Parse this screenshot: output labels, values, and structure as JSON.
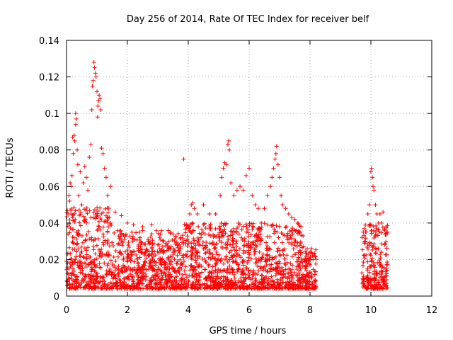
{
  "chart_data": {
    "type": "scatter",
    "title": "Day 256 of 2014, Rate Of TEC Index for receiver belf",
    "xlabel": "GPS time / hours",
    "ylabel": "ROTI / TECUs",
    "xlim": [
      0,
      12
    ],
    "ylim": [
      0,
      0.14
    ],
    "xticks": [
      0,
      2,
      4,
      6,
      8,
      10,
      12
    ],
    "yticks": [
      0,
      0.02,
      0.04,
      0.06,
      0.08,
      0.1,
      0.12,
      0.14
    ],
    "xtick_labels": [
      "0",
      "2",
      "4",
      "6",
      "8",
      "10",
      "12"
    ],
    "ytick_labels": [
      "0",
      "0.02",
      "0.04",
      "0.06",
      "0.08",
      "0.1",
      "0.12",
      "0.14"
    ],
    "grid": true,
    "marker": "+",
    "color": "#ff0000",
    "series": [
      {
        "name": "ROTI",
        "segments": [
          {
            "from": 0.0,
            "to": 8.2
          },
          {
            "from": 9.7,
            "to": 10.55
          }
        ],
        "points": [
          [
            0.05,
            0.045
          ],
          [
            0.08,
            0.055
          ],
          [
            0.1,
            0.052
          ],
          [
            0.12,
            0.062
          ],
          [
            0.15,
            0.06
          ],
          [
            0.18,
            0.066
          ],
          [
            0.2,
            0.087
          ],
          [
            0.22,
            0.078
          ],
          [
            0.25,
            0.088
          ],
          [
            0.27,
            0.085
          ],
          [
            0.3,
            0.1
          ],
          [
            0.3,
            0.094
          ],
          [
            0.32,
            0.097
          ],
          [
            0.35,
            0.08
          ],
          [
            0.37,
            0.072
          ],
          [
            0.4,
            0.055
          ],
          [
            0.45,
            0.068
          ],
          [
            0.5,
            0.05
          ],
          [
            0.55,
            0.062
          ],
          [
            0.6,
            0.071
          ],
          [
            0.65,
            0.065
          ],
          [
            0.7,
            0.058
          ],
          [
            0.75,
            0.076
          ],
          [
            0.8,
            0.083
          ],
          [
            0.83,
            0.102
          ],
          [
            0.85,
            0.115
          ],
          [
            0.87,
            0.118
          ],
          [
            0.9,
            0.128
          ],
          [
            0.92,
            0.125
          ],
          [
            0.95,
            0.122
          ],
          [
            0.97,
            0.12
          ],
          [
            1.0,
            0.112
          ],
          [
            1.02,
            0.098
          ],
          [
            1.03,
            0.104
          ],
          [
            1.05,
            0.107
          ],
          [
            1.07,
            0.11
          ],
          [
            1.1,
            0.108
          ],
          [
            1.12,
            0.102
          ],
          [
            1.15,
            0.081
          ],
          [
            1.2,
            0.078
          ],
          [
            1.25,
            0.07
          ],
          [
            1.3,
            0.065
          ],
          [
            1.35,
            0.055
          ],
          [
            1.45,
            0.06
          ],
          [
            1.6,
            0.046
          ],
          [
            1.8,
            0.044
          ],
          [
            2.0,
            0.04
          ],
          [
            2.2,
            0.039
          ],
          [
            2.5,
            0.038
          ],
          [
            2.8,
            0.039
          ],
          [
            3.0,
            0.028
          ],
          [
            3.3,
            0.025
          ],
          [
            3.5,
            0.024
          ],
          [
            3.85,
            0.075
          ],
          [
            4.0,
            0.03
          ],
          [
            4.05,
            0.045
          ],
          [
            4.1,
            0.05
          ],
          [
            4.15,
            0.051
          ],
          [
            4.2,
            0.048
          ],
          [
            4.3,
            0.045
          ],
          [
            4.5,
            0.05
          ],
          [
            4.7,
            0.045
          ],
          [
            4.9,
            0.045
          ],
          [
            5.05,
            0.055
          ],
          [
            5.1,
            0.065
          ],
          [
            5.15,
            0.07
          ],
          [
            5.2,
            0.073
          ],
          [
            5.25,
            0.072
          ],
          [
            5.3,
            0.083
          ],
          [
            5.33,
            0.085
          ],
          [
            5.35,
            0.08
          ],
          [
            5.4,
            0.062
          ],
          [
            5.5,
            0.055
          ],
          [
            5.6,
            0.058
          ],
          [
            5.7,
            0.06
          ],
          [
            5.8,
            0.058
          ],
          [
            5.9,
            0.066
          ],
          [
            6.0,
            0.07
          ],
          [
            6.1,
            0.055
          ],
          [
            6.2,
            0.05
          ],
          [
            6.3,
            0.048
          ],
          [
            6.4,
            0.04
          ],
          [
            6.5,
            0.048
          ],
          [
            6.6,
            0.055
          ],
          [
            6.7,
            0.06
          ],
          [
            6.75,
            0.065
          ],
          [
            6.8,
            0.07
          ],
          [
            6.85,
            0.075
          ],
          [
            6.88,
            0.078
          ],
          [
            6.9,
            0.082
          ],
          [
            6.95,
            0.072
          ],
          [
            7.0,
            0.065
          ],
          [
            7.05,
            0.055
          ],
          [
            7.1,
            0.05
          ],
          [
            7.2,
            0.048
          ],
          [
            7.3,
            0.045
          ],
          [
            7.4,
            0.043
          ],
          [
            7.5,
            0.042
          ],
          [
            7.6,
            0.04
          ],
          [
            7.7,
            0.038
          ],
          [
            7.8,
            0.02
          ],
          [
            7.9,
            0.018
          ],
          [
            8.0,
            0.02
          ],
          [
            8.1,
            0.02
          ],
          [
            8.2,
            0.02
          ],
          [
            9.75,
            0.035
          ],
          [
            9.8,
            0.03
          ],
          [
            9.9,
            0.045
          ],
          [
            9.95,
            0.05
          ],
          [
            10.0,
            0.068
          ],
          [
            10.02,
            0.07
          ],
          [
            10.05,
            0.065
          ],
          [
            10.07,
            0.06
          ],
          [
            10.1,
            0.058
          ],
          [
            10.15,
            0.05
          ],
          [
            10.2,
            0.045
          ],
          [
            10.25,
            0.04
          ],
          [
            10.3,
            0.045
          ],
          [
            10.35,
            0.04
          ],
          [
            10.4,
            0.046
          ],
          [
            10.45,
            0.036
          ],
          [
            10.5,
            0.038
          ]
        ]
      }
    ]
  }
}
